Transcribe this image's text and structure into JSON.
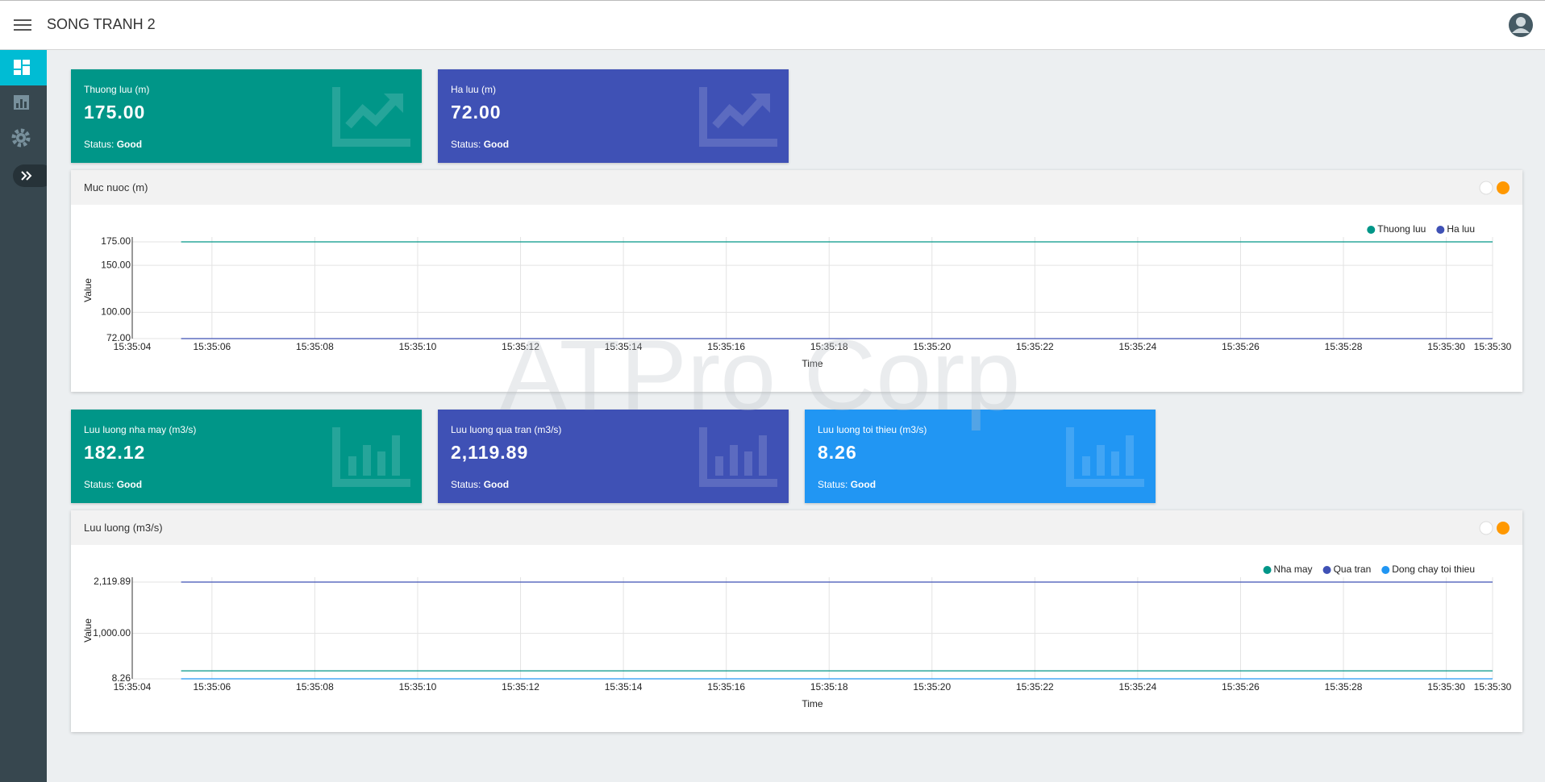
{
  "header": {
    "title": "SONG TRANH 2"
  },
  "watermark": "ATPro Corp",
  "sections": [
    {
      "cards": [
        {
          "title": "Thuong luu (m)",
          "value": "175.00",
          "status_label": "Status:",
          "status": "Good",
          "color": "#009688"
        },
        {
          "title": "Ha luu (m)",
          "value": "72.00",
          "status_label": "Status:",
          "status": "Good",
          "color": "#3f51b5"
        }
      ],
      "chart": {
        "type": "line",
        "title": "Muc nuoc (m)",
        "y_label": "Value",
        "x_label": "Time",
        "grid": true,
        "legend": "top-right",
        "x": [
          "15:35:05.4",
          "15:35:07.4",
          "15:35:09.4",
          "15:35:11.4",
          "15:35:13.4",
          "15:35:15.4",
          "15:35:17.4",
          "15:35:19.4",
          "15:35:21.4",
          "15:35:23.4",
          "15:35:25.4",
          "15:35:27.4",
          "15:35:29.4",
          "15:35:30.9"
        ],
        "xlim": [
          "15:35:04.45",
          "15:35:30.9"
        ],
        "xticks": [
          {
            "value": "15:35:04.45",
            "label": "15:35:04"
          },
          "15:35:06",
          "15:35:08",
          "15:35:10",
          "15:35:12",
          "15:35:14",
          "15:35:16",
          "15:35:18",
          "15:35:20",
          "15:35:22",
          "15:35:24",
          "15:35:26",
          "15:35:28",
          "15:35:30",
          {
            "value": "15:35:30.9",
            "label": "15:35:30"
          }
        ],
        "ylim": [
          72,
          175
        ],
        "yticks": [
          {
            "value": 175,
            "label": "175.00"
          },
          {
            "value": 150,
            "label": "150.00"
          },
          {
            "value": 100,
            "label": "100.00"
          },
          {
            "value": 72,
            "label": "72.00"
          }
        ],
        "series": [
          {
            "name": "Thuong luu",
            "color": "#009688",
            "values": [
              175,
              175,
              175,
              175,
              175,
              175,
              175,
              175,
              175,
              175,
              175,
              175,
              175,
              175
            ]
          },
          {
            "name": "Ha luu",
            "color": "#3f51b5",
            "values": [
              72,
              72,
              72,
              72,
              72,
              72,
              72,
              72,
              72,
              72,
              72,
              72,
              72,
              72
            ]
          }
        ]
      }
    },
    {
      "cards": [
        {
          "title": "Luu luong nha may (m3/s)",
          "value": "182.12",
          "status_label": "Status:",
          "status": "Good",
          "color": "#009688"
        },
        {
          "title": "Luu luong qua tran (m3/s)",
          "value": "2,119.89",
          "status_label": "Status:",
          "status": "Good",
          "color": "#3f51b5"
        },
        {
          "title": "Luu luong toi thieu (m3/s)",
          "value": "8.26",
          "status_label": "Status:",
          "status": "Good",
          "color": "#2196f3"
        }
      ],
      "chart": {
        "type": "line",
        "title": "Luu luong (m3/s)",
        "y_label": "Value",
        "x_label": "Time",
        "grid": true,
        "legend": "top-right",
        "x": [
          "15:35:05.4",
          "15:35:07.4",
          "15:35:09.4",
          "15:35:11.4",
          "15:35:13.4",
          "15:35:15.4",
          "15:35:17.4",
          "15:35:19.4",
          "15:35:21.4",
          "15:35:23.4",
          "15:35:25.4",
          "15:35:27.4",
          "15:35:29.4",
          "15:35:30.9"
        ],
        "xlim": [
          "15:35:04.45",
          "15:35:30.9"
        ],
        "xticks": [
          {
            "value": "15:35:04.45",
            "label": "15:35:04"
          },
          "15:35:06",
          "15:35:08",
          "15:35:10",
          "15:35:12",
          "15:35:14",
          "15:35:16",
          "15:35:18",
          "15:35:20",
          "15:35:22",
          "15:35:24",
          "15:35:26",
          "15:35:28",
          "15:35:30",
          {
            "value": "15:35:30.9",
            "label": "15:35:30"
          }
        ],
        "ylim": [
          8.26,
          2119.89
        ],
        "yticks": [
          {
            "value": 2119.89,
            "label": "2,119.89"
          },
          {
            "value": 1000,
            "label": "1,000.00"
          },
          {
            "value": 8.26,
            "label": "8.26"
          }
        ],
        "series": [
          {
            "name": "Nha may",
            "color": "#009688",
            "values": [
              182.12,
              182.12,
              182.12,
              182.12,
              182.12,
              182.12,
              182.12,
              182.12,
              182.12,
              182.12,
              182.12,
              182.12,
              182.12,
              182.12
            ]
          },
          {
            "name": "Qua tran",
            "color": "#3f51b5",
            "values": [
              2119.89,
              2119.89,
              2119.89,
              2119.89,
              2119.89,
              2119.89,
              2119.89,
              2119.89,
              2119.89,
              2119.89,
              2119.89,
              2119.89,
              2119.89,
              2119.89
            ]
          },
          {
            "name": "Dong chay toi thieu",
            "color": "#2196f3",
            "values": [
              8.26,
              8.26,
              8.26,
              8.26,
              8.26,
              8.26,
              8.26,
              8.26,
              8.26,
              8.26,
              8.26,
              8.26,
              8.26,
              8.26
            ]
          }
        ]
      }
    }
  ]
}
